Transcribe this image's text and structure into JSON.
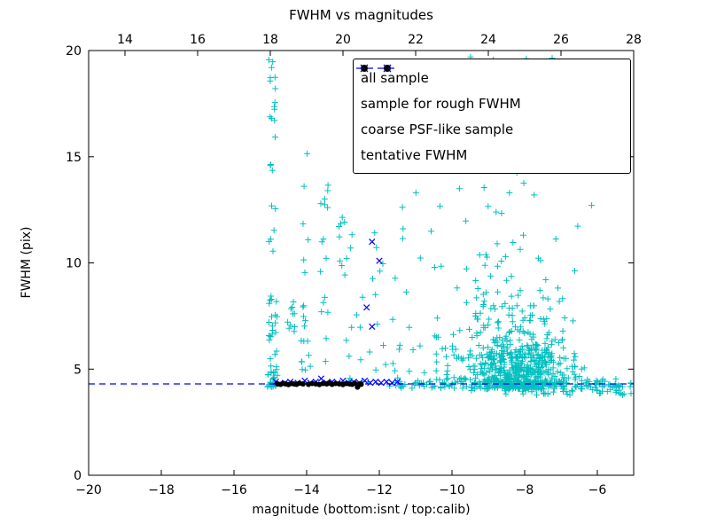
{
  "chart_data": {
    "type": "scatter",
    "title": "FWHM vs magnitudes",
    "xlabel": "magnitude (bottom:isnt / top:calib)",
    "ylabel": "FWHM (pix)",
    "xlim": [
      -20,
      -5
    ],
    "ylim": [
      0,
      20
    ],
    "x_ticks_bottom": [
      -20,
      -18,
      -16,
      -14,
      -12,
      -10,
      -8,
      -6
    ],
    "x_ticks_top": [
      14,
      16,
      18,
      20,
      22,
      24,
      26,
      28
    ],
    "top_axis_offset": 33,
    "y_ticks": [
      0,
      5,
      10,
      15,
      20
    ],
    "grid": false,
    "legend_position": "upper-right",
    "tentative_fwhm": 4.3,
    "colors": {
      "all_sample": "#00bfbf",
      "rough_fwhm_sample": "#0000ff",
      "psf_like_sample": "#000000",
      "tentative_line": "#0000ff",
      "axes": "#000000",
      "background": "#ffffff"
    },
    "legend": [
      {
        "label": "all sample",
        "marker": "plus",
        "color": "#00bfbf"
      },
      {
        "label": "sample for rough FWHM",
        "marker": "x",
        "color": "#0000ff"
      },
      {
        "label": "coarse PSF-like sample",
        "marker": "dot",
        "color": "#000000"
      },
      {
        "label": "tentative FWHM",
        "marker": "dashed-line",
        "color": "#0000ff"
      }
    ],
    "series": [
      {
        "name": "all sample",
        "marker": "plus",
        "color": "#00bfbf",
        "clusters": [
          {
            "n": 42,
            "x": {
              "d": "u",
              "a": -15.08,
              "b": -14.8
            },
            "y": {
              "d": "p",
              "a": 4.05,
              "b": 8.5,
              "k": 2
            }
          },
          {
            "n": 26,
            "x": {
              "d": "u",
              "a": -15.05,
              "b": -14.85
            },
            "y": {
              "d": "u",
              "a": 8.0,
              "b": 19.7
            }
          },
          {
            "n": 10,
            "x": {
              "d": "u",
              "a": -14.55,
              "b": -14.33
            },
            "y": {
              "d": "u",
              "a": 6.4,
              "b": 8.6
            }
          },
          {
            "n": 16,
            "x": {
              "d": "u",
              "a": -14.18,
              "b": -13.9
            },
            "y": {
              "d": "p",
              "a": 4.2,
              "b": 8.0,
              "k": 1.6
            }
          },
          {
            "n": 6,
            "x": {
              "d": "u",
              "a": -14.1,
              "b": -13.95
            },
            "y": {
              "d": "u",
              "a": 8.0,
              "b": 15.2
            }
          },
          {
            "n": 16,
            "x": {
              "d": "u",
              "a": -13.62,
              "b": -13.4
            },
            "y": {
              "d": "u",
              "a": 5.2,
              "b": 14.6
            }
          },
          {
            "n": 9,
            "x": {
              "d": "u",
              "a": -13.12,
              "b": -12.9
            },
            "y": {
              "d": "u",
              "a": 9.2,
              "b": 12.4
            }
          },
          {
            "n": 22,
            "x": {
              "d": "u",
              "a": -12.95,
              "b": -11.9
            },
            "y": {
              "d": "p",
              "a": 4.4,
              "b": 11.6,
              "k": 2.2
            }
          },
          {
            "n": 30,
            "x": {
              "d": "u",
              "a": -11.9,
              "b": -10.4
            },
            "y": {
              "d": "p",
              "a": 4.2,
              "b": 14.0,
              "k": 3
            }
          },
          {
            "n": 560,
            "x": {
              "d": "g",
              "a": -8.15,
              "b": 0.72
            },
            "y": {
              "d": "e",
              "a": 4.05,
              "b": 1.05
            }
          },
          {
            "n": 130,
            "x": {
              "d": "g",
              "a": -8.55,
              "b": 0.95
            },
            "y": {
              "d": "p",
              "a": 5.5,
              "b": 19.8,
              "k": 2.3
            }
          },
          {
            "n": 135,
            "x": {
              "d": "u",
              "a": -11.6,
              "b": -5.05
            },
            "y": {
              "d": "g",
              "a": 4.3,
              "b": 0.13
            }
          },
          {
            "n": 60,
            "x": {
              "d": "u",
              "a": -8.6,
              "b": -5.05
            },
            "y": {
              "d": "u",
              "a": 3.75,
              "b": 4.3
            }
          },
          {
            "n": 25,
            "x": {
              "d": "u",
              "a": -10.45,
              "b": -9.0
            },
            "y": {
              "d": "p",
              "a": 4.5,
              "b": 15.0,
              "k": 2.6
            }
          },
          {
            "n": 18,
            "x": {
              "d": "u",
              "a": -9.7,
              "b": -7.1
            },
            "y": {
              "d": "u",
              "a": 15.0,
              "b": 19.9
            }
          }
        ]
      },
      {
        "name": "sample for rough FWHM",
        "marker": "x",
        "color": "#0000ff",
        "points": [
          [
            -14.85,
            4.4
          ],
          [
            -14.6,
            4.35
          ],
          [
            -14.45,
            4.4
          ],
          [
            -14.25,
            4.35
          ],
          [
            -14.05,
            4.45
          ],
          [
            -13.9,
            4.35
          ],
          [
            -13.75,
            4.4
          ],
          [
            -13.6,
            4.55
          ],
          [
            -13.45,
            4.35
          ],
          [
            -13.3,
            4.4
          ],
          [
            -13.15,
            4.35
          ],
          [
            -13.0,
            4.45
          ],
          [
            -12.85,
            4.35
          ],
          [
            -12.7,
            4.4
          ],
          [
            -12.55,
            4.35
          ],
          [
            -12.4,
            4.45
          ],
          [
            -12.25,
            4.35
          ],
          [
            -12.1,
            4.4
          ],
          [
            -11.95,
            4.35
          ],
          [
            -11.8,
            4.4
          ],
          [
            -11.65,
            4.35
          ],
          [
            -11.5,
            4.4
          ],
          [
            -12.2,
            11.0
          ],
          [
            -12.0,
            10.1
          ],
          [
            -12.35,
            7.9
          ],
          [
            -12.2,
            7.0
          ]
        ]
      },
      {
        "name": "coarse PSF-like sample",
        "marker": "dot",
        "color": "#000000",
        "points": [
          [
            -14.8,
            4.3
          ],
          [
            -14.72,
            4.28
          ],
          [
            -14.65,
            4.33
          ],
          [
            -14.58,
            4.3
          ],
          [
            -14.5,
            4.27
          ],
          [
            -14.42,
            4.32
          ],
          [
            -14.35,
            4.3
          ],
          [
            -14.28,
            4.28
          ],
          [
            -14.2,
            4.33
          ],
          [
            -14.1,
            4.3
          ],
          [
            -13.95,
            4.28
          ],
          [
            -13.85,
            4.32
          ],
          [
            -13.75,
            4.3
          ],
          [
            -13.65,
            4.27
          ],
          [
            -13.55,
            4.32
          ],
          [
            -13.45,
            4.3
          ],
          [
            -13.38,
            4.35
          ],
          [
            -13.3,
            4.28
          ],
          [
            -13.2,
            4.32
          ],
          [
            -13.1,
            4.3
          ],
          [
            -13.0,
            4.27
          ],
          [
            -12.9,
            4.32
          ],
          [
            -12.82,
            4.3
          ],
          [
            -12.75,
            4.28
          ],
          [
            -12.68,
            4.33
          ],
          [
            -12.6,
            4.15
          ],
          [
            -12.55,
            4.3
          ],
          [
            -12.5,
            4.28
          ]
        ]
      },
      {
        "name": "tentative FWHM",
        "marker": "dashed-line",
        "color": "#0000ff",
        "y": 4.3
      }
    ]
  }
}
